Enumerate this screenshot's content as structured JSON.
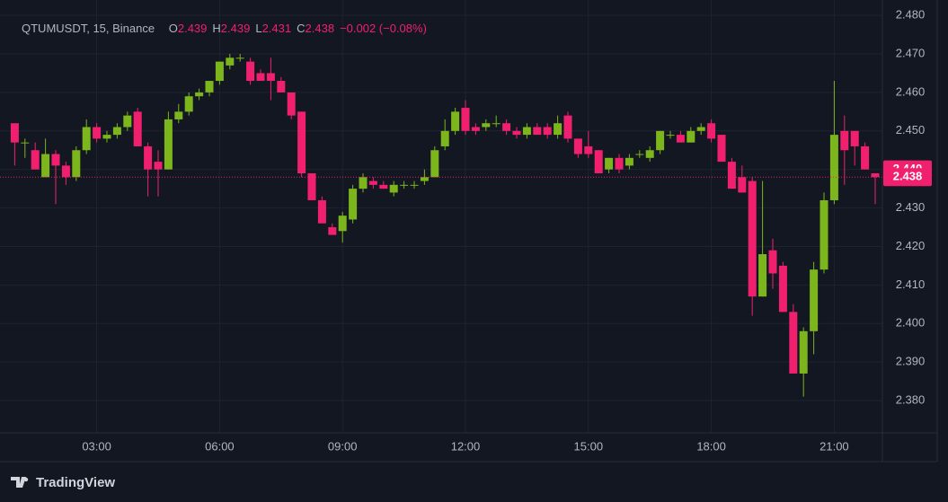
{
  "chart_data": {
    "type": "candlestick",
    "title": "QTUMUSDT, 15, Binance",
    "ohlc_legend": [
      {
        "key": "O",
        "value": 2.439
      },
      {
        "key": "H",
        "value": 2.439
      },
      {
        "key": "L",
        "value": 2.431
      },
      {
        "key": "C",
        "value": 2.438
      }
    ],
    "change": "−0.002 (−0.08%)",
    "x": [
      "01:00",
      "01:15",
      "01:30",
      "01:45",
      "02:00",
      "02:15",
      "02:30",
      "02:45",
      "03:00",
      "03:15",
      "03:30",
      "03:45",
      "04:00",
      "04:15",
      "04:30",
      "04:45",
      "05:00",
      "05:15",
      "05:30",
      "05:45",
      "06:00",
      "06:15",
      "06:30",
      "06:45",
      "07:00",
      "07:15",
      "07:30",
      "07:45",
      "08:00",
      "08:15",
      "08:30",
      "08:45",
      "09:00",
      "09:15",
      "09:30",
      "09:45",
      "10:00",
      "10:15",
      "10:30",
      "10:45",
      "11:00",
      "11:15",
      "11:30",
      "11:45",
      "12:00",
      "12:15",
      "12:30",
      "12:45",
      "13:00",
      "13:15",
      "13:30",
      "13:45",
      "14:00",
      "14:15",
      "14:30",
      "14:45",
      "15:00",
      "15:15",
      "15:30",
      "15:45",
      "16:00",
      "16:15",
      "16:30",
      "16:45",
      "17:00",
      "17:15",
      "17:30",
      "17:45",
      "18:00",
      "18:15",
      "18:30",
      "18:45",
      "19:00",
      "19:15",
      "19:30",
      "19:45",
      "20:00",
      "20:15",
      "20:30",
      "20:45",
      "21:00",
      "21:15",
      "21:30",
      "21:45",
      "22:00"
    ],
    "open": [
      2.452,
      2.447,
      2.445,
      2.438,
      2.444,
      2.441,
      2.438,
      2.445,
      2.451,
      2.448,
      2.449,
      2.451,
      2.455,
      2.446,
      2.442,
      2.44,
      2.453,
      2.455,
      2.459,
      2.46,
      2.463,
      2.467,
      2.469,
      2.468,
      2.465,
      2.465,
      2.463,
      2.46,
      2.455,
      2.439,
      2.432,
      2.425,
      2.424,
      2.427,
      2.435,
      2.437,
      2.436,
      2.434,
      2.436,
      2.436,
      2.437,
      2.438,
      2.446,
      2.45,
      2.456,
      2.451,
      2.451,
      2.452,
      2.452,
      2.45,
      2.449,
      2.451,
      2.451,
      2.449,
      2.454,
      2.448,
      2.446,
      2.445,
      2.44,
      2.443,
      2.441,
      2.444,
      2.443,
      2.445,
      2.449,
      2.449,
      2.447,
      2.45,
      2.452,
      2.449,
      2.442,
      2.438,
      2.437,
      2.407,
      2.419,
      2.415,
      2.403,
      2.387,
      2.398,
      2.414,
      2.432,
      2.45,
      2.45,
      2.446,
      2.439
    ],
    "high": [
      2.452,
      2.448,
      2.447,
      2.448,
      2.445,
      2.442,
      2.446,
      2.453,
      2.452,
      2.45,
      2.452,
      2.455,
      2.456,
      2.447,
      2.445,
      2.455,
      2.457,
      2.46,
      2.461,
      2.463,
      2.468,
      2.47,
      2.47,
      2.469,
      2.466,
      2.469,
      2.464,
      2.46,
      2.455,
      2.439,
      2.433,
      2.426,
      2.429,
      2.436,
      2.439,
      2.438,
      2.437,
      2.437,
      2.437,
      2.437,
      2.44,
      2.446,
      2.453,
      2.456,
      2.458,
      2.452,
      2.453,
      2.454,
      2.453,
      2.451,
      2.452,
      2.452,
      2.452,
      2.454,
      2.455,
      2.448,
      2.45,
      2.445,
      2.443,
      2.444,
      2.444,
      2.445,
      2.446,
      2.45,
      2.45,
      2.45,
      2.451,
      2.452,
      2.453,
      2.449,
      2.443,
      2.441,
      2.438,
      2.437,
      2.422,
      2.416,
      2.405,
      2.399,
      2.416,
      2.434,
      2.463,
      2.454,
      2.45,
      2.447,
      2.439
    ],
    "low": [
      2.441,
      2.443,
      2.44,
      2.438,
      2.431,
      2.436,
      2.437,
      2.444,
      2.447,
      2.447,
      2.448,
      2.45,
      2.446,
      2.433,
      2.433,
      2.44,
      2.452,
      2.454,
      2.458,
      2.459,
      2.462,
      2.466,
      2.468,
      2.462,
      2.463,
      2.458,
      2.46,
      2.453,
      2.438,
      2.432,
      2.426,
      2.423,
      2.421,
      2.426,
      2.434,
      2.435,
      2.435,
      2.433,
      2.435,
      2.435,
      2.436,
      2.438,
      2.445,
      2.449,
      2.449,
      2.449,
      2.45,
      2.451,
      2.449,
      2.448,
      2.448,
      2.449,
      2.448,
      2.448,
      2.447,
      2.443,
      2.443,
      2.439,
      2.439,
      2.439,
      2.44,
      2.443,
      2.442,
      2.444,
      2.448,
      2.447,
      2.447,
      2.449,
      2.447,
      2.442,
      2.435,
      2.434,
      2.402,
      2.407,
      2.409,
      2.403,
      2.387,
      2.381,
      2.392,
      2.413,
      2.431,
      2.436,
      2.441,
      2.44,
      2.431
    ],
    "close": [
      2.447,
      2.447,
      2.44,
      2.444,
      2.441,
      2.438,
      2.445,
      2.451,
      2.448,
      2.449,
      2.451,
      2.454,
      2.446,
      2.44,
      2.44,
      2.453,
      2.455,
      2.459,
      2.46,
      2.463,
      2.468,
      2.469,
      2.469,
      2.463,
      2.463,
      2.463,
      2.46,
      2.454,
      2.439,
      2.432,
      2.426,
      2.423,
      2.428,
      2.435,
      2.438,
      2.436,
      2.435,
      2.436,
      2.436,
      2.436,
      2.438,
      2.445,
      2.45,
      2.455,
      2.45,
      2.45,
      2.452,
      2.452,
      2.45,
      2.449,
      2.451,
      2.449,
      2.449,
      2.452,
      2.448,
      2.444,
      2.444,
      2.439,
      2.443,
      2.44,
      2.443,
      2.444,
      2.445,
      2.45,
      2.449,
      2.447,
      2.45,
      2.451,
      2.448,
      2.442,
      2.435,
      2.434,
      2.407,
      2.418,
      2.413,
      2.403,
      2.387,
      2.398,
      2.414,
      2.432,
      2.449,
      2.445,
      2.446,
      2.44,
      2.438
    ],
    "up_color": "#7cb51c",
    "down_color": "#f0206f",
    "ylim": [
      2.3716,
      2.484
    ],
    "yticks": [
      {
        "value": 2.38,
        "label": "2.380"
      },
      {
        "value": 2.39,
        "label": "2.390"
      },
      {
        "value": 2.4,
        "label": "2.400"
      },
      {
        "value": 2.41,
        "label": "2.410"
      },
      {
        "value": 2.42,
        "label": "2.420"
      },
      {
        "value": 2.43,
        "label": "2.430"
      },
      {
        "value": 2.44,
        "label": "2.440"
      },
      {
        "value": 2.45,
        "label": "2.450"
      },
      {
        "value": 2.46,
        "label": "2.460"
      },
      {
        "value": 2.47,
        "label": "2.470"
      },
      {
        "value": 2.48,
        "label": "2.480"
      }
    ],
    "xticks": [
      "03:00",
      "06:00",
      "09:00",
      "12:00",
      "15:00",
      "18:00",
      "21:00"
    ],
    "grid": true,
    "marker_price": {
      "value": 2.44,
      "label": "2.440"
    },
    "last_price": {
      "value": 2.438,
      "label": "2.438"
    }
  },
  "branding": "TradingView"
}
